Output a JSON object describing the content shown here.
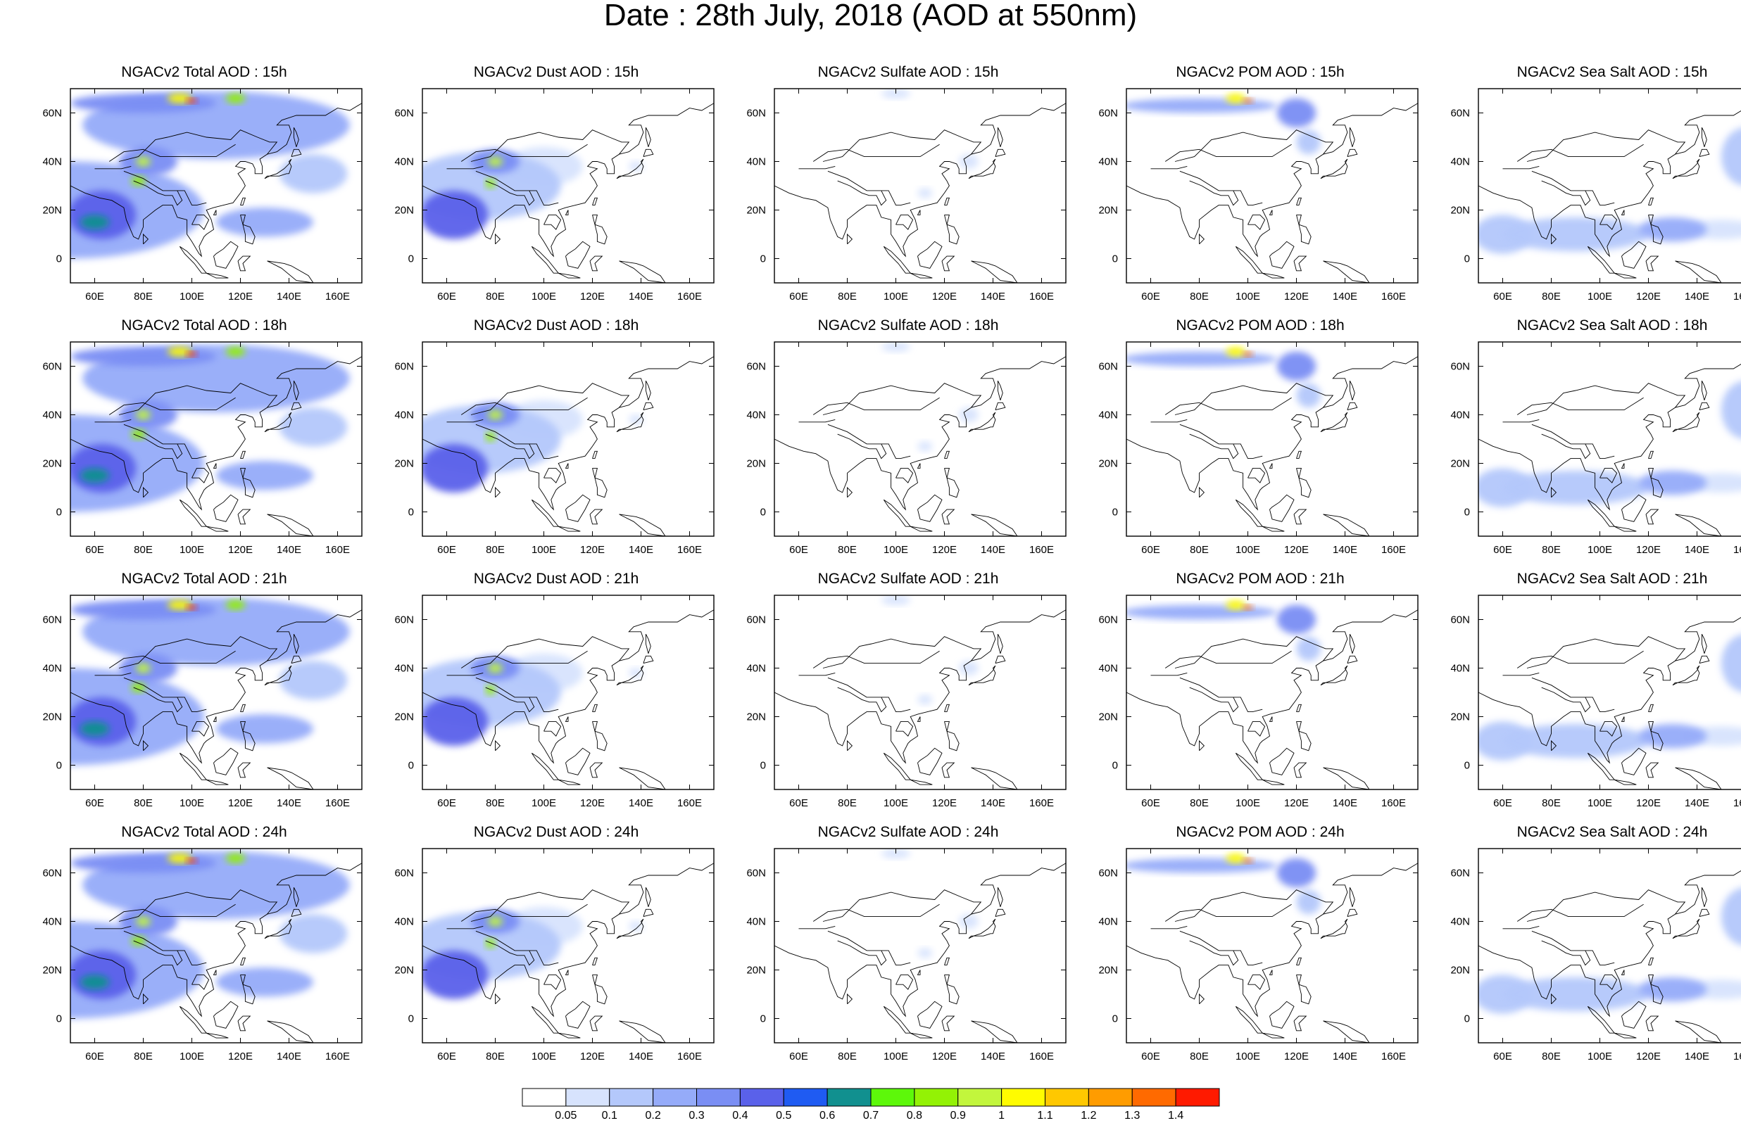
{
  "title": "Date : 28th July, 2018 (AOD at 550nm)",
  "axes": {
    "x_ticks": [
      "60E",
      "80E",
      "100E",
      "120E",
      "140E",
      "160E"
    ],
    "x_tick_values": [
      60,
      80,
      100,
      120,
      140,
      160
    ],
    "y_ticks": [
      "60N",
      "40N",
      "20N",
      "0"
    ],
    "y_tick_values": [
      60,
      40,
      20,
      0
    ],
    "lon_range": [
      50,
      170
    ],
    "lat_range": [
      -10,
      70
    ]
  },
  "panels": [
    {
      "title": "NGACv2 Total AOD : 15h",
      "species": "total"
    },
    {
      "title": "NGACv2 Dust AOD : 15h",
      "species": "dust"
    },
    {
      "title": "NGACv2 Sulfate AOD : 15h",
      "species": "sulfate"
    },
    {
      "title": "NGACv2 POM AOD : 15h",
      "species": "pom"
    },
    {
      "title": "NGACv2 Sea Salt AOD : 15h",
      "species": "seasalt"
    },
    {
      "title": "NGACv2 Total AOD : 18h",
      "species": "total"
    },
    {
      "title": "NGACv2 Dust AOD : 18h",
      "species": "dust"
    },
    {
      "title": "NGACv2 Sulfate AOD : 18h",
      "species": "sulfate"
    },
    {
      "title": "NGACv2 POM AOD : 18h",
      "species": "pom"
    },
    {
      "title": "NGACv2 Sea Salt AOD : 18h",
      "species": "seasalt"
    },
    {
      "title": "NGACv2 Total AOD : 21h",
      "species": "total"
    },
    {
      "title": "NGACv2 Dust AOD : 21h",
      "species": "dust"
    },
    {
      "title": "NGACv2 Sulfate AOD : 21h",
      "species": "sulfate"
    },
    {
      "title": "NGACv2 POM AOD : 21h",
      "species": "pom"
    },
    {
      "title": "NGACv2 Sea Salt AOD : 21h",
      "species": "seasalt"
    },
    {
      "title": "NGACv2 Total AOD : 24h",
      "species": "total"
    },
    {
      "title": "NGACv2 Dust AOD : 24h",
      "species": "dust"
    },
    {
      "title": "NGACv2 Sulfate AOD : 24h",
      "species": "sulfate"
    },
    {
      "title": "NGACv2 POM AOD : 24h",
      "species": "pom"
    },
    {
      "title": "NGACv2 Sea Salt  AOD : 24h",
      "species": "seasalt"
    }
  ],
  "colorbar": {
    "labels": [
      "0.05",
      "0.1",
      "0.2",
      "0.3",
      "0.4",
      "0.5",
      "0.6",
      "0.7",
      "0.8",
      "0.9",
      "1",
      "1.1",
      "1.2",
      "1.3",
      "1.4"
    ],
    "colors": [
      "#ffffff",
      "#d7e3fd",
      "#b4c8fb",
      "#95abf9",
      "#7a8ef4",
      "#5a61ea",
      "#1f5bf2",
      "#11908f",
      "#5df80a",
      "#93f205",
      "#c2f63c",
      "#fffc00",
      "#ffc800",
      "#ff9c00",
      "#ff6a00",
      "#ff1a00"
    ]
  },
  "features": {
    "total": [
      {
        "lon": 50,
        "lat": 20,
        "rx": 55,
        "ry": 20,
        "v": 0.28
      },
      {
        "lon": 110,
        "lat": 55,
        "rx": 55,
        "ry": 14,
        "v": 0.2
      },
      {
        "lon": 63,
        "lat": 18,
        "rx": 14,
        "ry": 10,
        "v": 0.45
      },
      {
        "lon": 60,
        "lat": 15,
        "rx": 6,
        "ry": 3,
        "v": 0.62
      },
      {
        "lon": 82,
        "lat": 40,
        "rx": 12,
        "ry": 6,
        "v": 0.38
      },
      {
        "lon": 80,
        "lat": 40,
        "rx": 3,
        "ry": 2,
        "v": 0.9
      },
      {
        "lon": 78,
        "lat": 32,
        "rx": 3,
        "ry": 2,
        "v": 0.85
      },
      {
        "lon": 95,
        "lat": 66,
        "rx": 5,
        "ry": 2,
        "v": 1.05
      },
      {
        "lon": 100,
        "lat": 65,
        "rx": 2,
        "ry": 1,
        "v": 1.4
      },
      {
        "lon": 118,
        "lat": 66,
        "rx": 4,
        "ry": 2,
        "v": 0.85
      },
      {
        "lon": 80,
        "lat": 64,
        "rx": 30,
        "ry": 4,
        "v": 0.3
      },
      {
        "lon": 130,
        "lat": 15,
        "rx": 20,
        "ry": 6,
        "v": 0.2
      },
      {
        "lon": 150,
        "lat": 35,
        "rx": 14,
        "ry": 8,
        "v": 0.12
      }
    ],
    "dust": [
      {
        "lon": 75,
        "lat": 30,
        "rx": 32,
        "ry": 14,
        "v": 0.15
      },
      {
        "lon": 63,
        "lat": 18,
        "rx": 14,
        "ry": 10,
        "v": 0.42
      },
      {
        "lon": 80,
        "lat": 40,
        "rx": 10,
        "ry": 5,
        "v": 0.35
      },
      {
        "lon": 80,
        "lat": 40,
        "rx": 3,
        "ry": 2,
        "v": 0.9
      },
      {
        "lon": 78,
        "lat": 31,
        "rx": 2,
        "ry": 2,
        "v": 0.85
      },
      {
        "lon": 100,
        "lat": 38,
        "rx": 16,
        "ry": 8,
        "v": 0.08
      },
      {
        "lon": 138,
        "lat": 38,
        "rx": 3,
        "ry": 2,
        "v": 0.08
      }
    ],
    "sulfate": [
      {
        "lon": 130,
        "lat": 40,
        "rx": 4,
        "ry": 3,
        "v": 0.07
      },
      {
        "lon": 100,
        "lat": 68,
        "rx": 6,
        "ry": 2,
        "v": 0.07
      },
      {
        "lon": 112,
        "lat": 27,
        "rx": 3,
        "ry": 2,
        "v": 0.07
      }
    ],
    "pom": [
      {
        "lon": 80,
        "lat": 63,
        "rx": 32,
        "ry": 3,
        "v": 0.25
      },
      {
        "lon": 95,
        "lat": 66,
        "rx": 4,
        "ry": 2,
        "v": 1.0
      },
      {
        "lon": 100,
        "lat": 65,
        "rx": 2,
        "ry": 1,
        "v": 1.35
      },
      {
        "lon": 120,
        "lat": 60,
        "rx": 8,
        "ry": 6,
        "v": 0.3
      },
      {
        "lon": 125,
        "lat": 48,
        "rx": 5,
        "ry": 5,
        "v": 0.12
      }
    ],
    "seasalt": [
      {
        "lon": 90,
        "lat": 10,
        "rx": 30,
        "ry": 7,
        "v": 0.15
      },
      {
        "lon": 130,
        "lat": 12,
        "rx": 14,
        "ry": 5,
        "v": 0.2
      },
      {
        "lon": 160,
        "lat": 42,
        "rx": 10,
        "ry": 12,
        "v": 0.1
      },
      {
        "lon": 150,
        "lat": 12,
        "rx": 15,
        "ry": 4,
        "v": 0.08
      },
      {
        "lon": 60,
        "lat": 10,
        "rx": 12,
        "ry": 8,
        "v": 0.1
      }
    ]
  }
}
